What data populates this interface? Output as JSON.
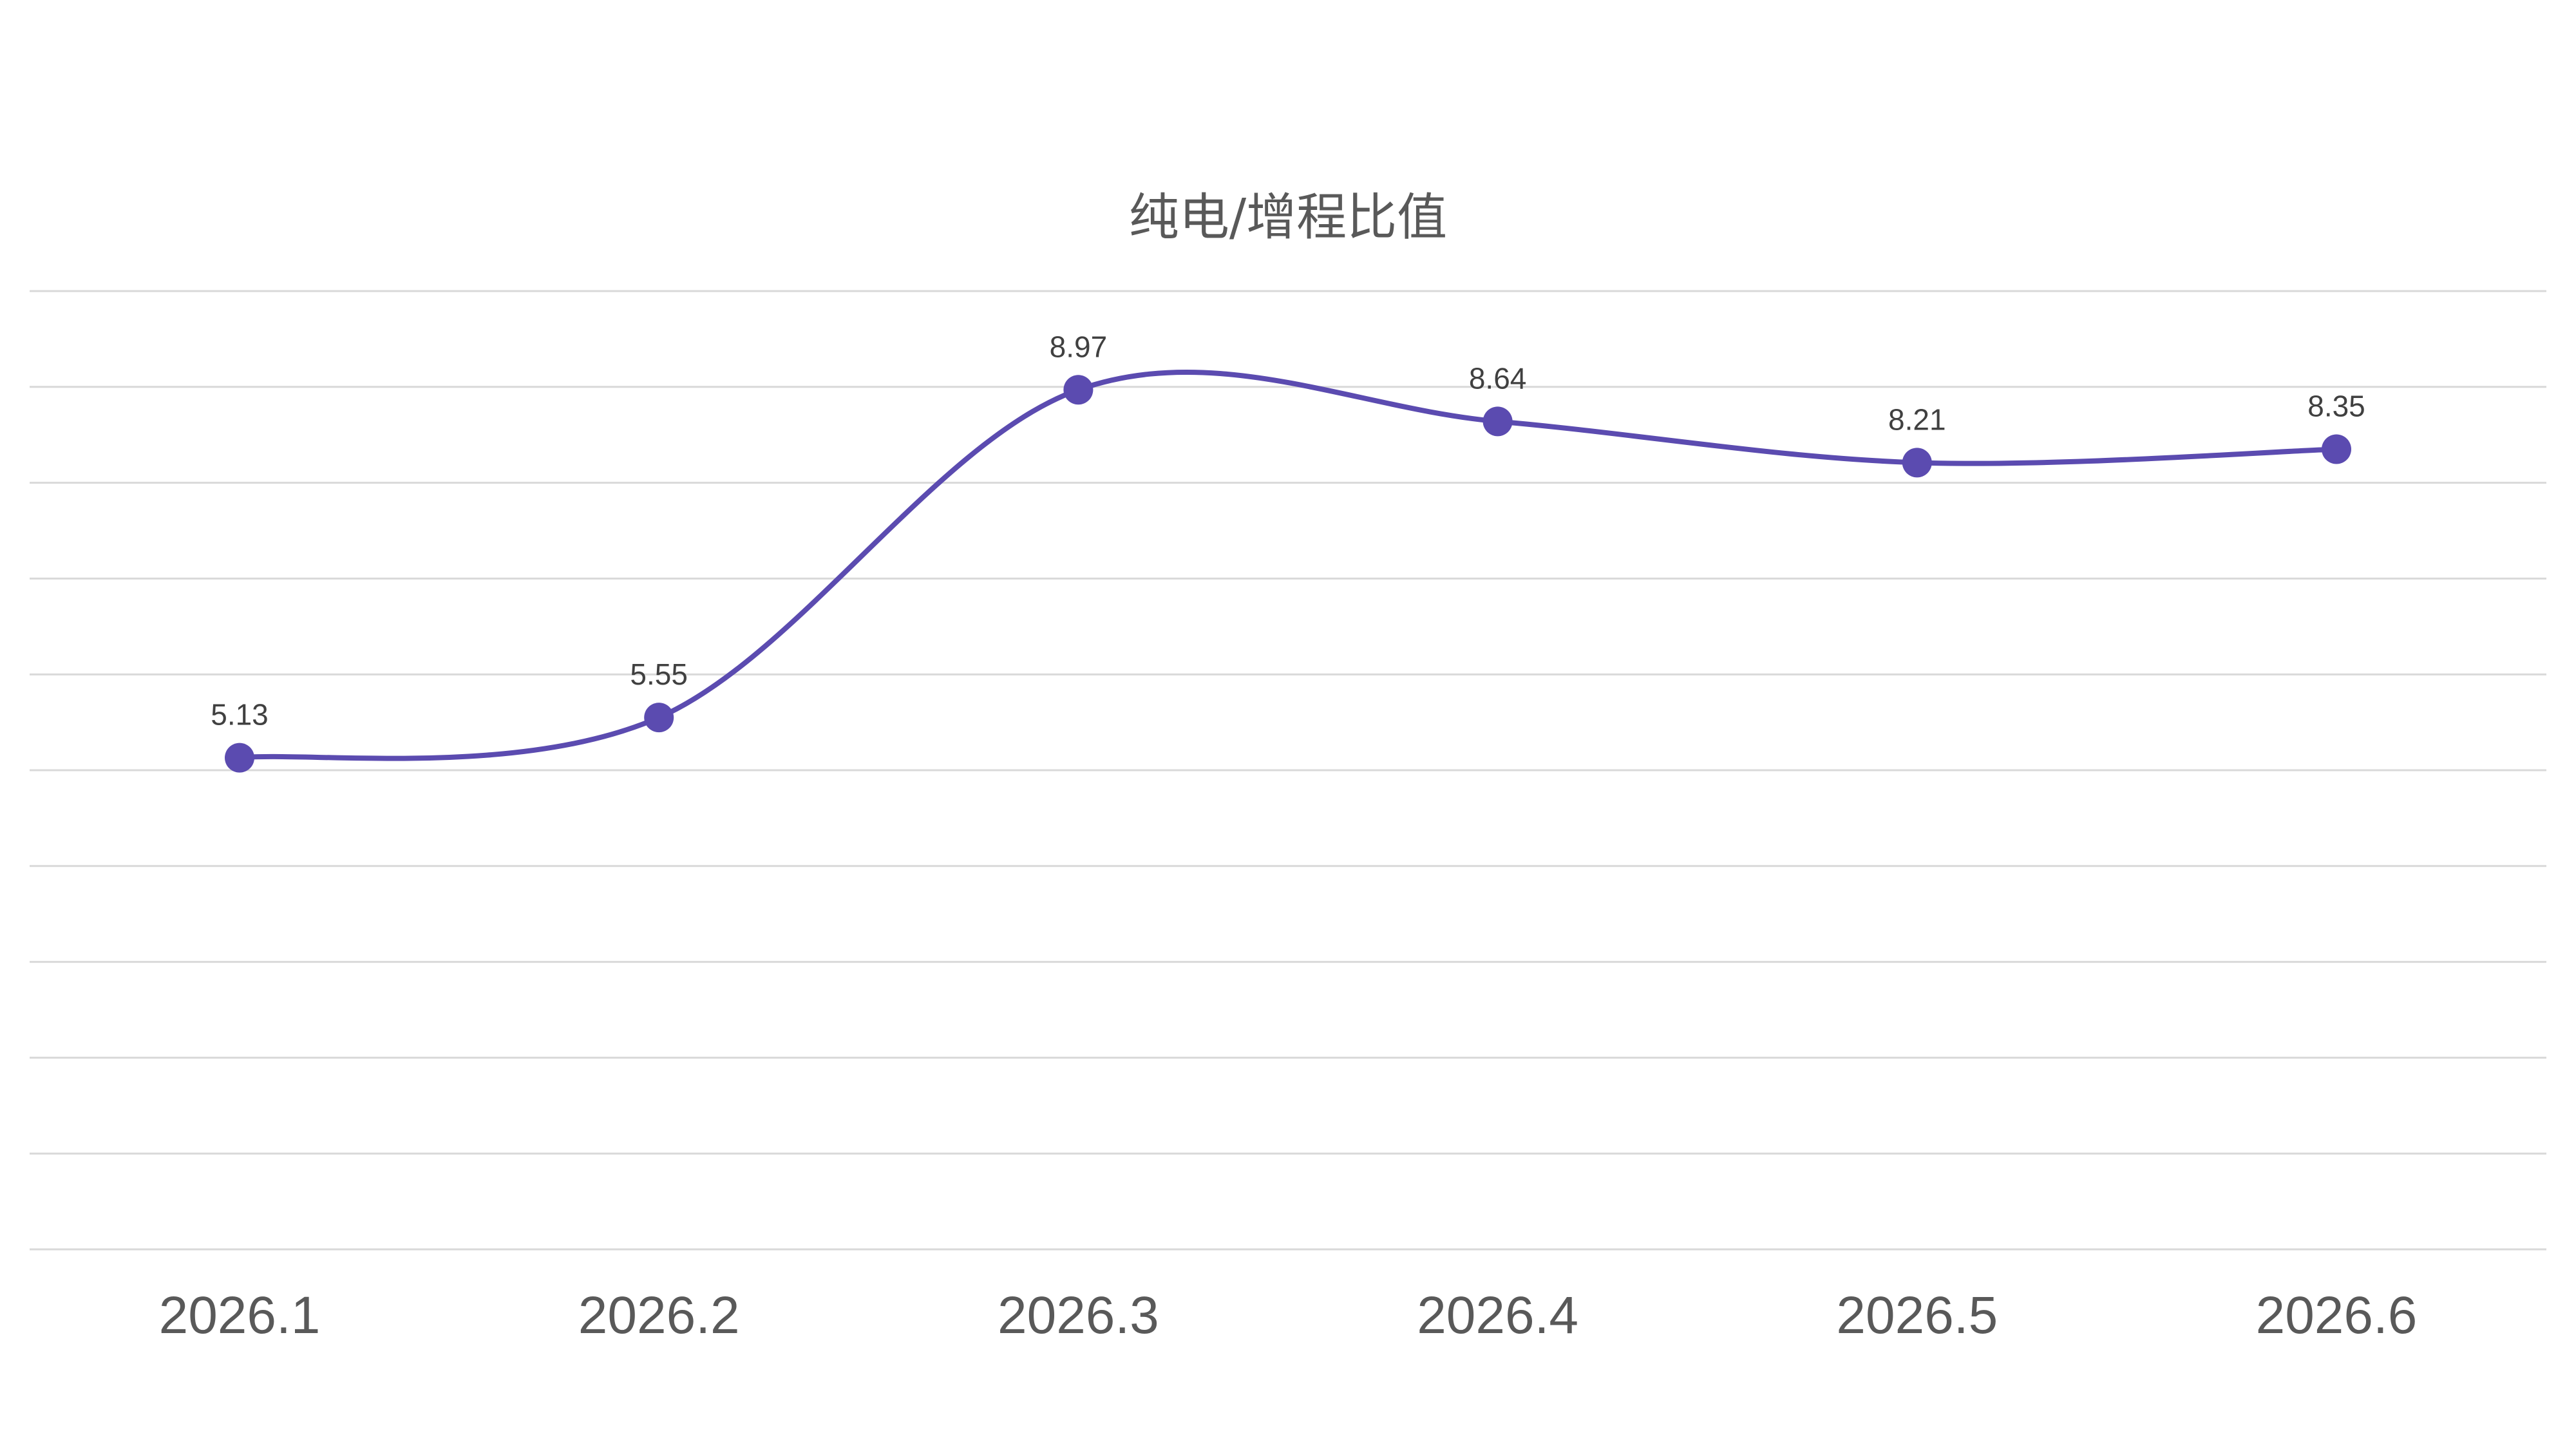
{
  "chart_data": {
    "type": "line",
    "title": "纯电/增程比值",
    "categories": [
      "2026.1",
      "2026.2",
      "2026.3",
      "2026.4",
      "2026.5",
      "2026.6"
    ],
    "series": [
      {
        "values": [
          5.13,
          5.55,
          8.97,
          8.64,
          8.21,
          8.35
        ]
      }
    ],
    "xlabel": "",
    "ylabel": "",
    "ylim": [
      0,
      10
    ],
    "grid": true,
    "legend": "none",
    "data_labels": true,
    "smooth": true,
    "colors": {
      "series": "#5b4bb0",
      "grid": "#d9d9d9",
      "title": "#595959",
      "tick_label": "#595959",
      "data_label": "#404040"
    }
  }
}
